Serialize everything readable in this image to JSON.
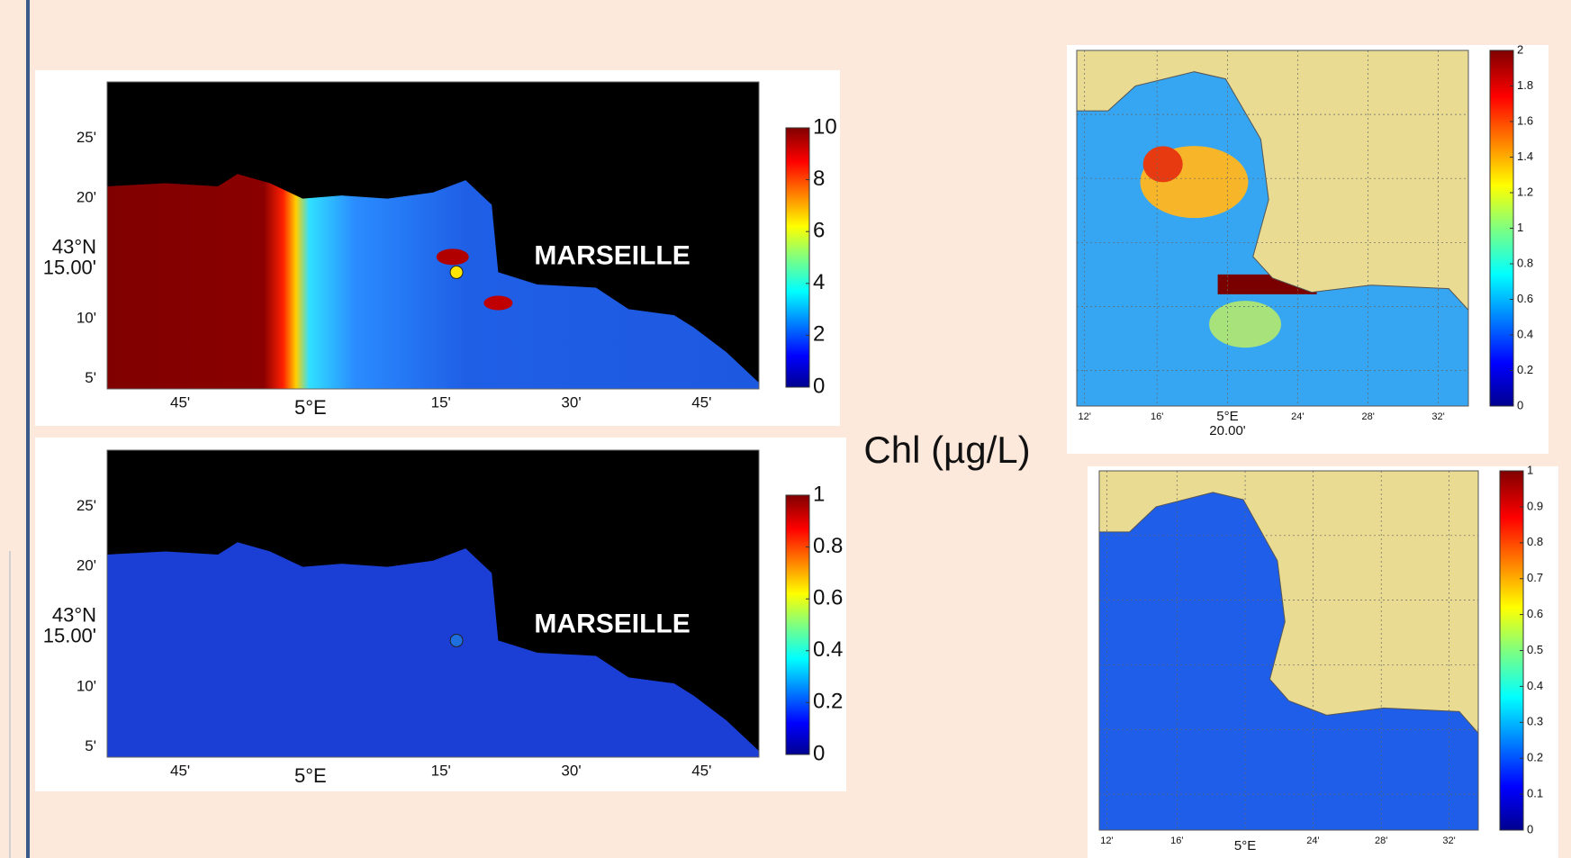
{
  "caption": "Chl (µg/L)",
  "left_maps": [
    {
      "place_label": "MARSEILLE",
      "x_ticks": [
        [
          "45'"
        ],
        [
          "5°E"
        ],
        [
          "15'"
        ],
        [
          "30'"
        ],
        [
          "45'"
        ]
      ],
      "y_ticks": [
        [
          "25'"
        ],
        [
          "20'"
        ],
        [
          "43°N",
          "15.00'"
        ],
        [
          "10'"
        ],
        [
          "5'"
        ]
      ],
      "colorbar_ticks": [
        0,
        2,
        4,
        6,
        8,
        10
      ]
    },
    {
      "place_label": "MARSEILLE",
      "x_ticks": [
        [
          "45'"
        ],
        [
          "5°E"
        ],
        [
          "15'"
        ],
        [
          "30'"
        ],
        [
          "45'"
        ]
      ],
      "y_ticks": [
        [
          "25'"
        ],
        [
          "20'"
        ],
        [
          "43°N",
          "15.00'"
        ],
        [
          "10'"
        ],
        [
          "5'"
        ]
      ],
      "colorbar_ticks": [
        0,
        0.2,
        0.4,
        0.6,
        0.8,
        1
      ]
    }
  ],
  "right_maps": [
    {
      "x_ticks": [
        [
          "12'"
        ],
        [
          "16'"
        ],
        [
          "5°E",
          "20.00'"
        ],
        [
          "24'"
        ],
        [
          "28'"
        ],
        [
          "32'"
        ]
      ],
      "colorbar_ticks": [
        0,
        0.2,
        0.4,
        0.6,
        0.8,
        1,
        1.2,
        1.4,
        1.6,
        1.8,
        2
      ]
    },
    {
      "x_ticks": [
        [
          "12'"
        ],
        [
          "16'"
        ],
        [
          "5°E"
        ],
        [
          "24'"
        ],
        [
          "28'"
        ],
        [
          "32'"
        ]
      ],
      "colorbar_ticks": [
        0,
        0.1,
        0.2,
        0.3,
        0.4,
        0.5,
        0.6,
        0.7,
        0.8,
        0.9,
        1
      ]
    }
  ]
}
